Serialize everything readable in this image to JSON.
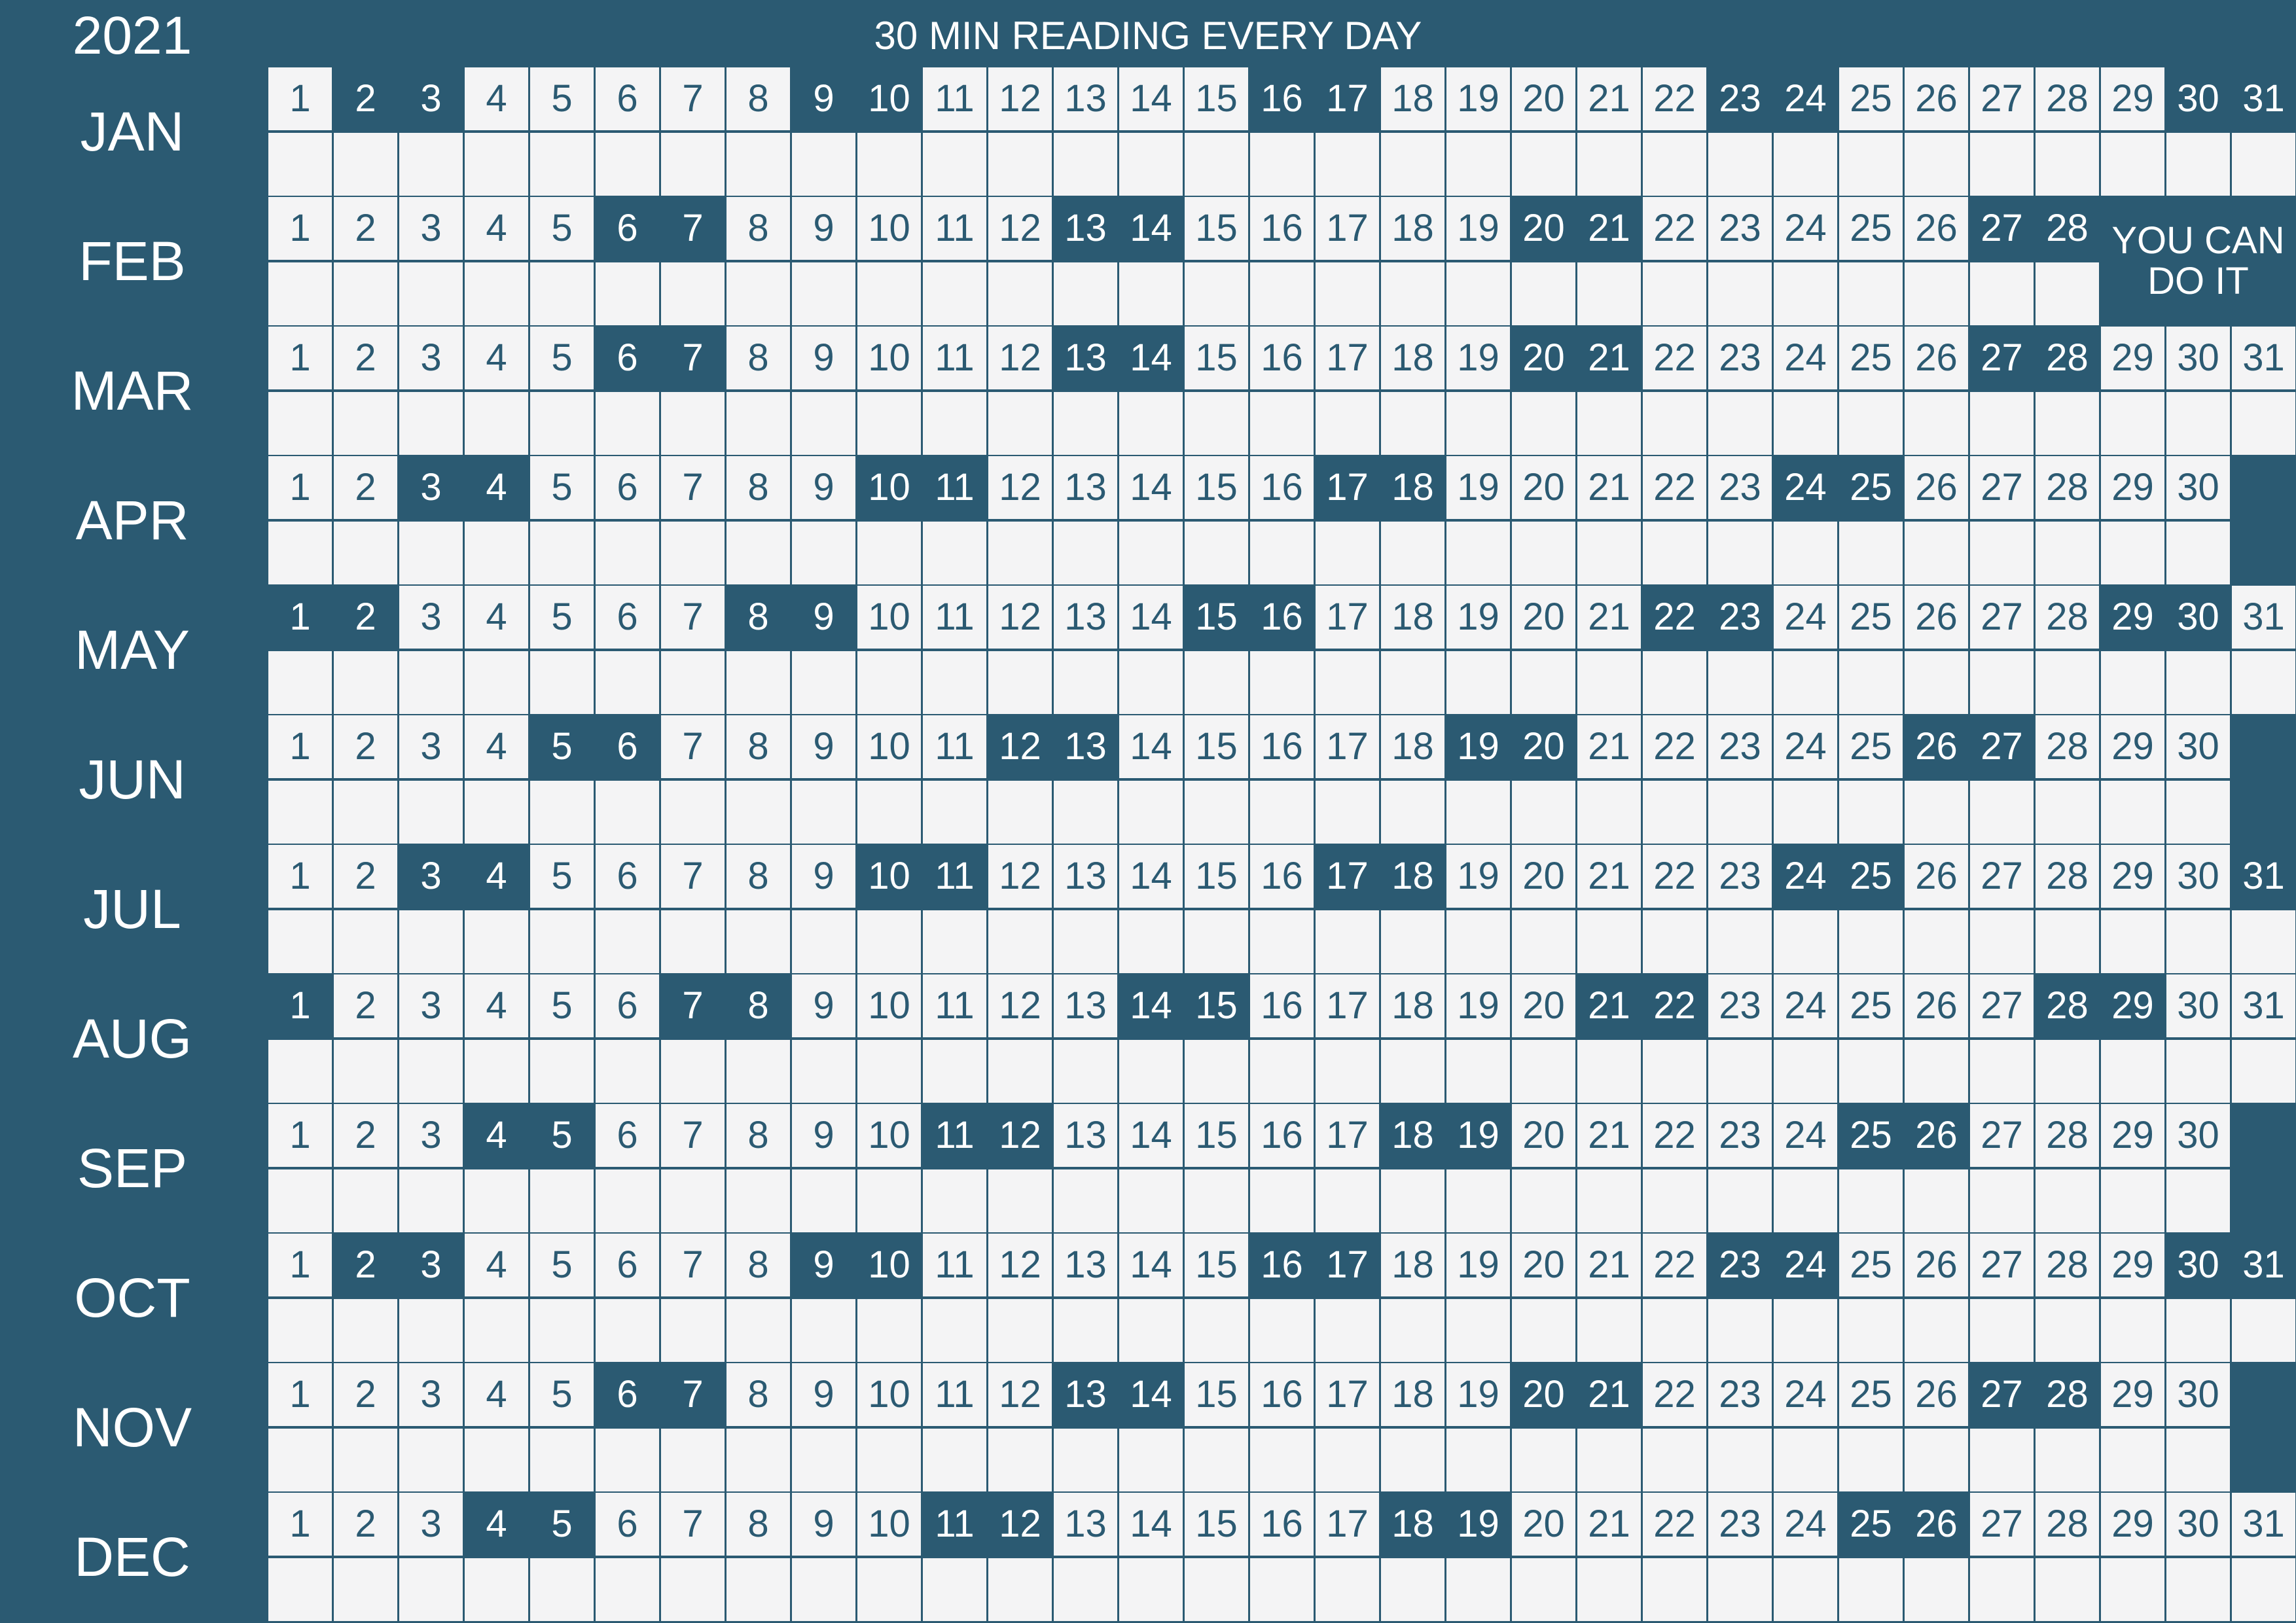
{
  "header": {
    "year": "2021",
    "title": "30 MIN READING EVERY DAY"
  },
  "colors": {
    "background": "#2b5a72",
    "cell": "#f4f4f5",
    "weekend": "#2b5a72"
  },
  "months": [
    {
      "label": "JAN",
      "days": 31,
      "weekends": [
        2,
        3,
        9,
        10,
        16,
        17,
        23,
        24,
        30,
        31
      ]
    },
    {
      "label": "FEB",
      "days": 28,
      "weekends": [
        6,
        7,
        13,
        14,
        20,
        21,
        27,
        28
      ]
    },
    {
      "label": "MAR",
      "days": 31,
      "weekends": [
        6,
        7,
        13,
        14,
        20,
        21,
        27,
        28
      ]
    },
    {
      "label": "APR",
      "days": 30,
      "weekends": [
        3,
        4,
        10,
        11,
        17,
        18,
        24,
        25
      ]
    },
    {
      "label": "MAY",
      "days": 31,
      "weekends": [
        1,
        2,
        8,
        9,
        15,
        16,
        22,
        23,
        29,
        30
      ]
    },
    {
      "label": "JUN",
      "days": 30,
      "weekends": [
        5,
        6,
        12,
        13,
        19,
        20,
        26,
        27
      ]
    },
    {
      "label": "JUL",
      "days": 31,
      "weekends": [
        3,
        4,
        10,
        11,
        17,
        18,
        24,
        25,
        31
      ]
    },
    {
      "label": "AUG",
      "days": 31,
      "weekends": [
        1,
        7,
        8,
        14,
        15,
        21,
        22,
        28,
        29
      ]
    },
    {
      "label": "SEP",
      "days": 30,
      "weekends": [
        4,
        5,
        11,
        12,
        18,
        19,
        25,
        26
      ]
    },
    {
      "label": "OCT",
      "days": 31,
      "weekends": [
        2,
        3,
        9,
        10,
        16,
        17,
        23,
        24,
        30,
        31
      ]
    },
    {
      "label": "NOV",
      "days": 30,
      "weekends": [
        6,
        7,
        13,
        14,
        20,
        21,
        27,
        28
      ]
    },
    {
      "label": "DEC",
      "days": 31,
      "weekends": [
        4,
        5,
        11,
        12,
        18,
        19,
        25,
        26
      ]
    }
  ],
  "motto": {
    "line1": "YOU CAN",
    "line2": "DO IT"
  }
}
